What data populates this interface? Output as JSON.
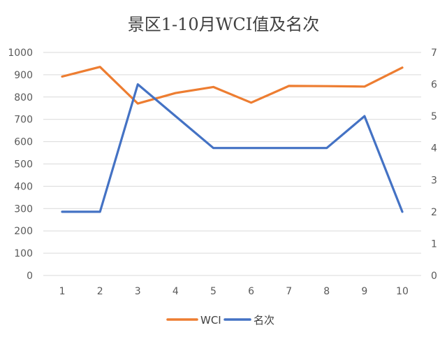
{
  "chart_data": {
    "type": "line",
    "title": "景区1-10月WCI值及名次",
    "categories": [
      "1",
      "2",
      "3",
      "4",
      "5",
      "6",
      "7",
      "8",
      "9",
      "10"
    ],
    "series": [
      {
        "name": "WCI",
        "axis": "left",
        "color": "#ED7D31",
        "values": [
          892,
          935,
          771,
          818,
          845,
          775,
          850,
          849,
          847,
          932
        ]
      },
      {
        "name": "名次",
        "axis": "right",
        "color": "#4472C4",
        "values": [
          2,
          2,
          6,
          5,
          4,
          4,
          4,
          4,
          5,
          2
        ]
      }
    ],
    "y_left": {
      "min": 0,
      "max": 1000,
      "ticks": [
        "0",
        "100",
        "200",
        "300",
        "400",
        "500",
        "600",
        "700",
        "800",
        "900",
        "1000"
      ]
    },
    "y_right": {
      "min": 0,
      "max": 7,
      "ticks": [
        "0",
        "1",
        "2",
        "3",
        "4",
        "5",
        "6",
        "7"
      ]
    },
    "grid": true,
    "legend_position": "bottom"
  }
}
